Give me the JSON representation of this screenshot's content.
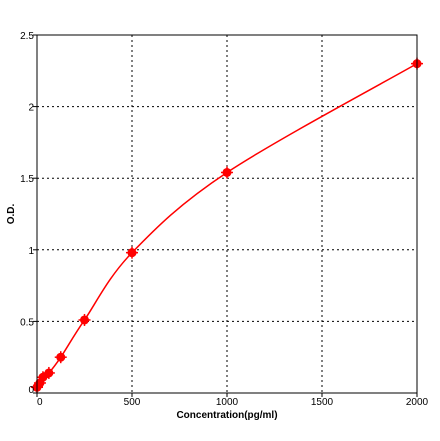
{
  "chart_data": {
    "type": "scatter",
    "title": "",
    "xlabel": "Concentration(pg/ml)",
    "ylabel": "O.D.",
    "xlim": [
      0,
      2000
    ],
    "ylim": [
      0,
      2.5
    ],
    "x_ticks": [
      0,
      500,
      1000,
      1500,
      2000
    ],
    "x_tick_labels": [
      "0",
      "500",
      "1000",
      "1500",
      "2000"
    ],
    "y_ticks": [
      0,
      0.5,
      1,
      1.5,
      2,
      2.5
    ],
    "y_tick_labels": [
      "0",
      "0.5",
      "1",
      "1.5",
      "2",
      "2.5"
    ],
    "grid": true,
    "series": [
      {
        "x": [
          0,
          15.6,
          31.25,
          62.5,
          125,
          250,
          500,
          1000,
          2000
        ],
        "y": [
          0.04,
          0.07,
          0.11,
          0.14,
          0.25,
          0.51,
          0.98,
          1.54,
          2.3
        ],
        "color": "#ff0000",
        "marker": "circle",
        "fit_line": true
      }
    ]
  }
}
